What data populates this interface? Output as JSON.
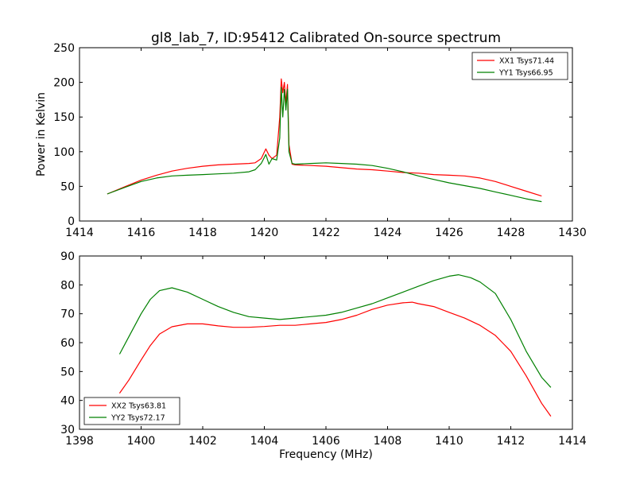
{
  "page": {
    "title": "gl8_lab_7, ID:95412 Calibrated On-source spectrum"
  },
  "chart_data": [
    {
      "type": "line",
      "title": "gl8_lab_7, ID:95412 Calibrated On-source spectrum",
      "xlabel": "",
      "ylabel": "Power in Kelvin",
      "xlim": [
        1414,
        1430
      ],
      "ylim": [
        0,
        250
      ],
      "xticks": [
        1414,
        1416,
        1418,
        1420,
        1422,
        1424,
        1426,
        1428,
        1430
      ],
      "yticks": [
        0,
        50,
        100,
        150,
        200,
        250
      ],
      "grid": false,
      "legend_position": "top-right",
      "series": [
        {
          "name": "XX1 Tsys71.44",
          "color": "#ff0000",
          "x": [
            1414.9,
            1415.5,
            1416.0,
            1416.5,
            1417.0,
            1417.5,
            1418.0,
            1418.5,
            1419.0,
            1419.5,
            1419.7,
            1419.9,
            1420.05,
            1420.15,
            1420.25,
            1420.4,
            1420.5,
            1420.55,
            1420.6,
            1420.65,
            1420.7,
            1420.75,
            1420.8,
            1420.9,
            1421.0,
            1421.5,
            1422.0,
            1422.5,
            1423.0,
            1423.5,
            1424.0,
            1424.5,
            1425.0,
            1425.5,
            1426.0,
            1426.5,
            1427.0,
            1427.5,
            1428.0,
            1428.5,
            1429.0
          ],
          "y": [
            39,
            50,
            59,
            66,
            72,
            76,
            79,
            81,
            82,
            83,
            84,
            90,
            104,
            95,
            90,
            95,
            150,
            205,
            185,
            200,
            170,
            197,
            110,
            82,
            81,
            80,
            79,
            77,
            75,
            74,
            72,
            70,
            69,
            67,
            66,
            65,
            62,
            57,
            50,
            43,
            36
          ]
        },
        {
          "name": "YY1 Tsys66.95",
          "color": "#008000",
          "x": [
            1414.9,
            1415.5,
            1416.0,
            1416.5,
            1417.0,
            1417.5,
            1418.0,
            1418.5,
            1419.0,
            1419.5,
            1419.7,
            1419.9,
            1420.05,
            1420.15,
            1420.25,
            1420.4,
            1420.5,
            1420.55,
            1420.6,
            1420.65,
            1420.7,
            1420.75,
            1420.8,
            1420.9,
            1421.0,
            1421.5,
            1422.0,
            1422.5,
            1423.0,
            1423.5,
            1424.0,
            1424.5,
            1425.0,
            1425.5,
            1426.0,
            1426.5,
            1427.0,
            1427.5,
            1428.0,
            1428.5,
            1429.0
          ],
          "y": [
            39,
            49,
            57,
            62,
            65,
            66,
            67,
            68,
            69,
            71,
            74,
            83,
            96,
            82,
            90,
            88,
            120,
            193,
            150,
            190,
            160,
            190,
            100,
            83,
            82,
            83,
            84,
            83,
            82,
            80,
            76,
            71,
            65,
            60,
            55,
            51,
            47,
            42,
            37,
            32,
            28
          ]
        }
      ]
    },
    {
      "type": "line",
      "title": "",
      "xlabel": "Frequency (MHz)",
      "ylabel": "",
      "xlim": [
        1398,
        1414
      ],
      "ylim": [
        30,
        90
      ],
      "xticks": [
        1398,
        1400,
        1402,
        1404,
        1406,
        1408,
        1410,
        1412,
        1414
      ],
      "yticks": [
        30,
        40,
        50,
        60,
        70,
        80,
        90
      ],
      "grid": false,
      "legend_position": "bottom-left",
      "series": [
        {
          "name": "XX2 Tsys63.81",
          "color": "#ff0000",
          "x": [
            1399.3,
            1399.6,
            1400.0,
            1400.3,
            1400.6,
            1401.0,
            1401.5,
            1402.0,
            1402.5,
            1403.0,
            1403.5,
            1404.0,
            1404.5,
            1405.0,
            1405.5,
            1406.0,
            1406.5,
            1407.0,
            1407.5,
            1408.0,
            1408.5,
            1408.8,
            1409.0,
            1409.5,
            1410.0,
            1410.5,
            1411.0,
            1411.5,
            1412.0,
            1412.5,
            1413.0,
            1413.3
          ],
          "y": [
            42.5,
            47,
            54,
            59,
            63,
            65.5,
            66.5,
            66.5,
            65.8,
            65.3,
            65.3,
            65.6,
            66,
            66,
            66.5,
            67,
            68,
            69.5,
            71.5,
            73,
            73.8,
            74,
            73.5,
            72.5,
            70.5,
            68.5,
            66,
            62.5,
            57,
            48.5,
            39,
            34.5
          ]
        },
        {
          "name": "YY2 Tsys72.17",
          "color": "#008000",
          "x": [
            1399.3,
            1399.6,
            1400.0,
            1400.3,
            1400.6,
            1401.0,
            1401.5,
            1402.0,
            1402.5,
            1403.0,
            1403.5,
            1404.0,
            1404.5,
            1405.0,
            1405.5,
            1406.0,
            1406.5,
            1407.0,
            1407.5,
            1408.0,
            1408.5,
            1409.0,
            1409.5,
            1410.0,
            1410.3,
            1410.7,
            1411.0,
            1411.5,
            1412.0,
            1412.5,
            1413.0,
            1413.3
          ],
          "y": [
            56,
            62,
            70,
            75,
            78,
            79,
            77.5,
            75,
            72.5,
            70.5,
            69,
            68.5,
            68,
            68.5,
            69,
            69.5,
            70.5,
            72,
            73.5,
            75.5,
            77.5,
            79.5,
            81.5,
            83,
            83.5,
            82.5,
            81,
            77,
            68,
            57,
            48,
            44.5
          ]
        }
      ]
    }
  ]
}
